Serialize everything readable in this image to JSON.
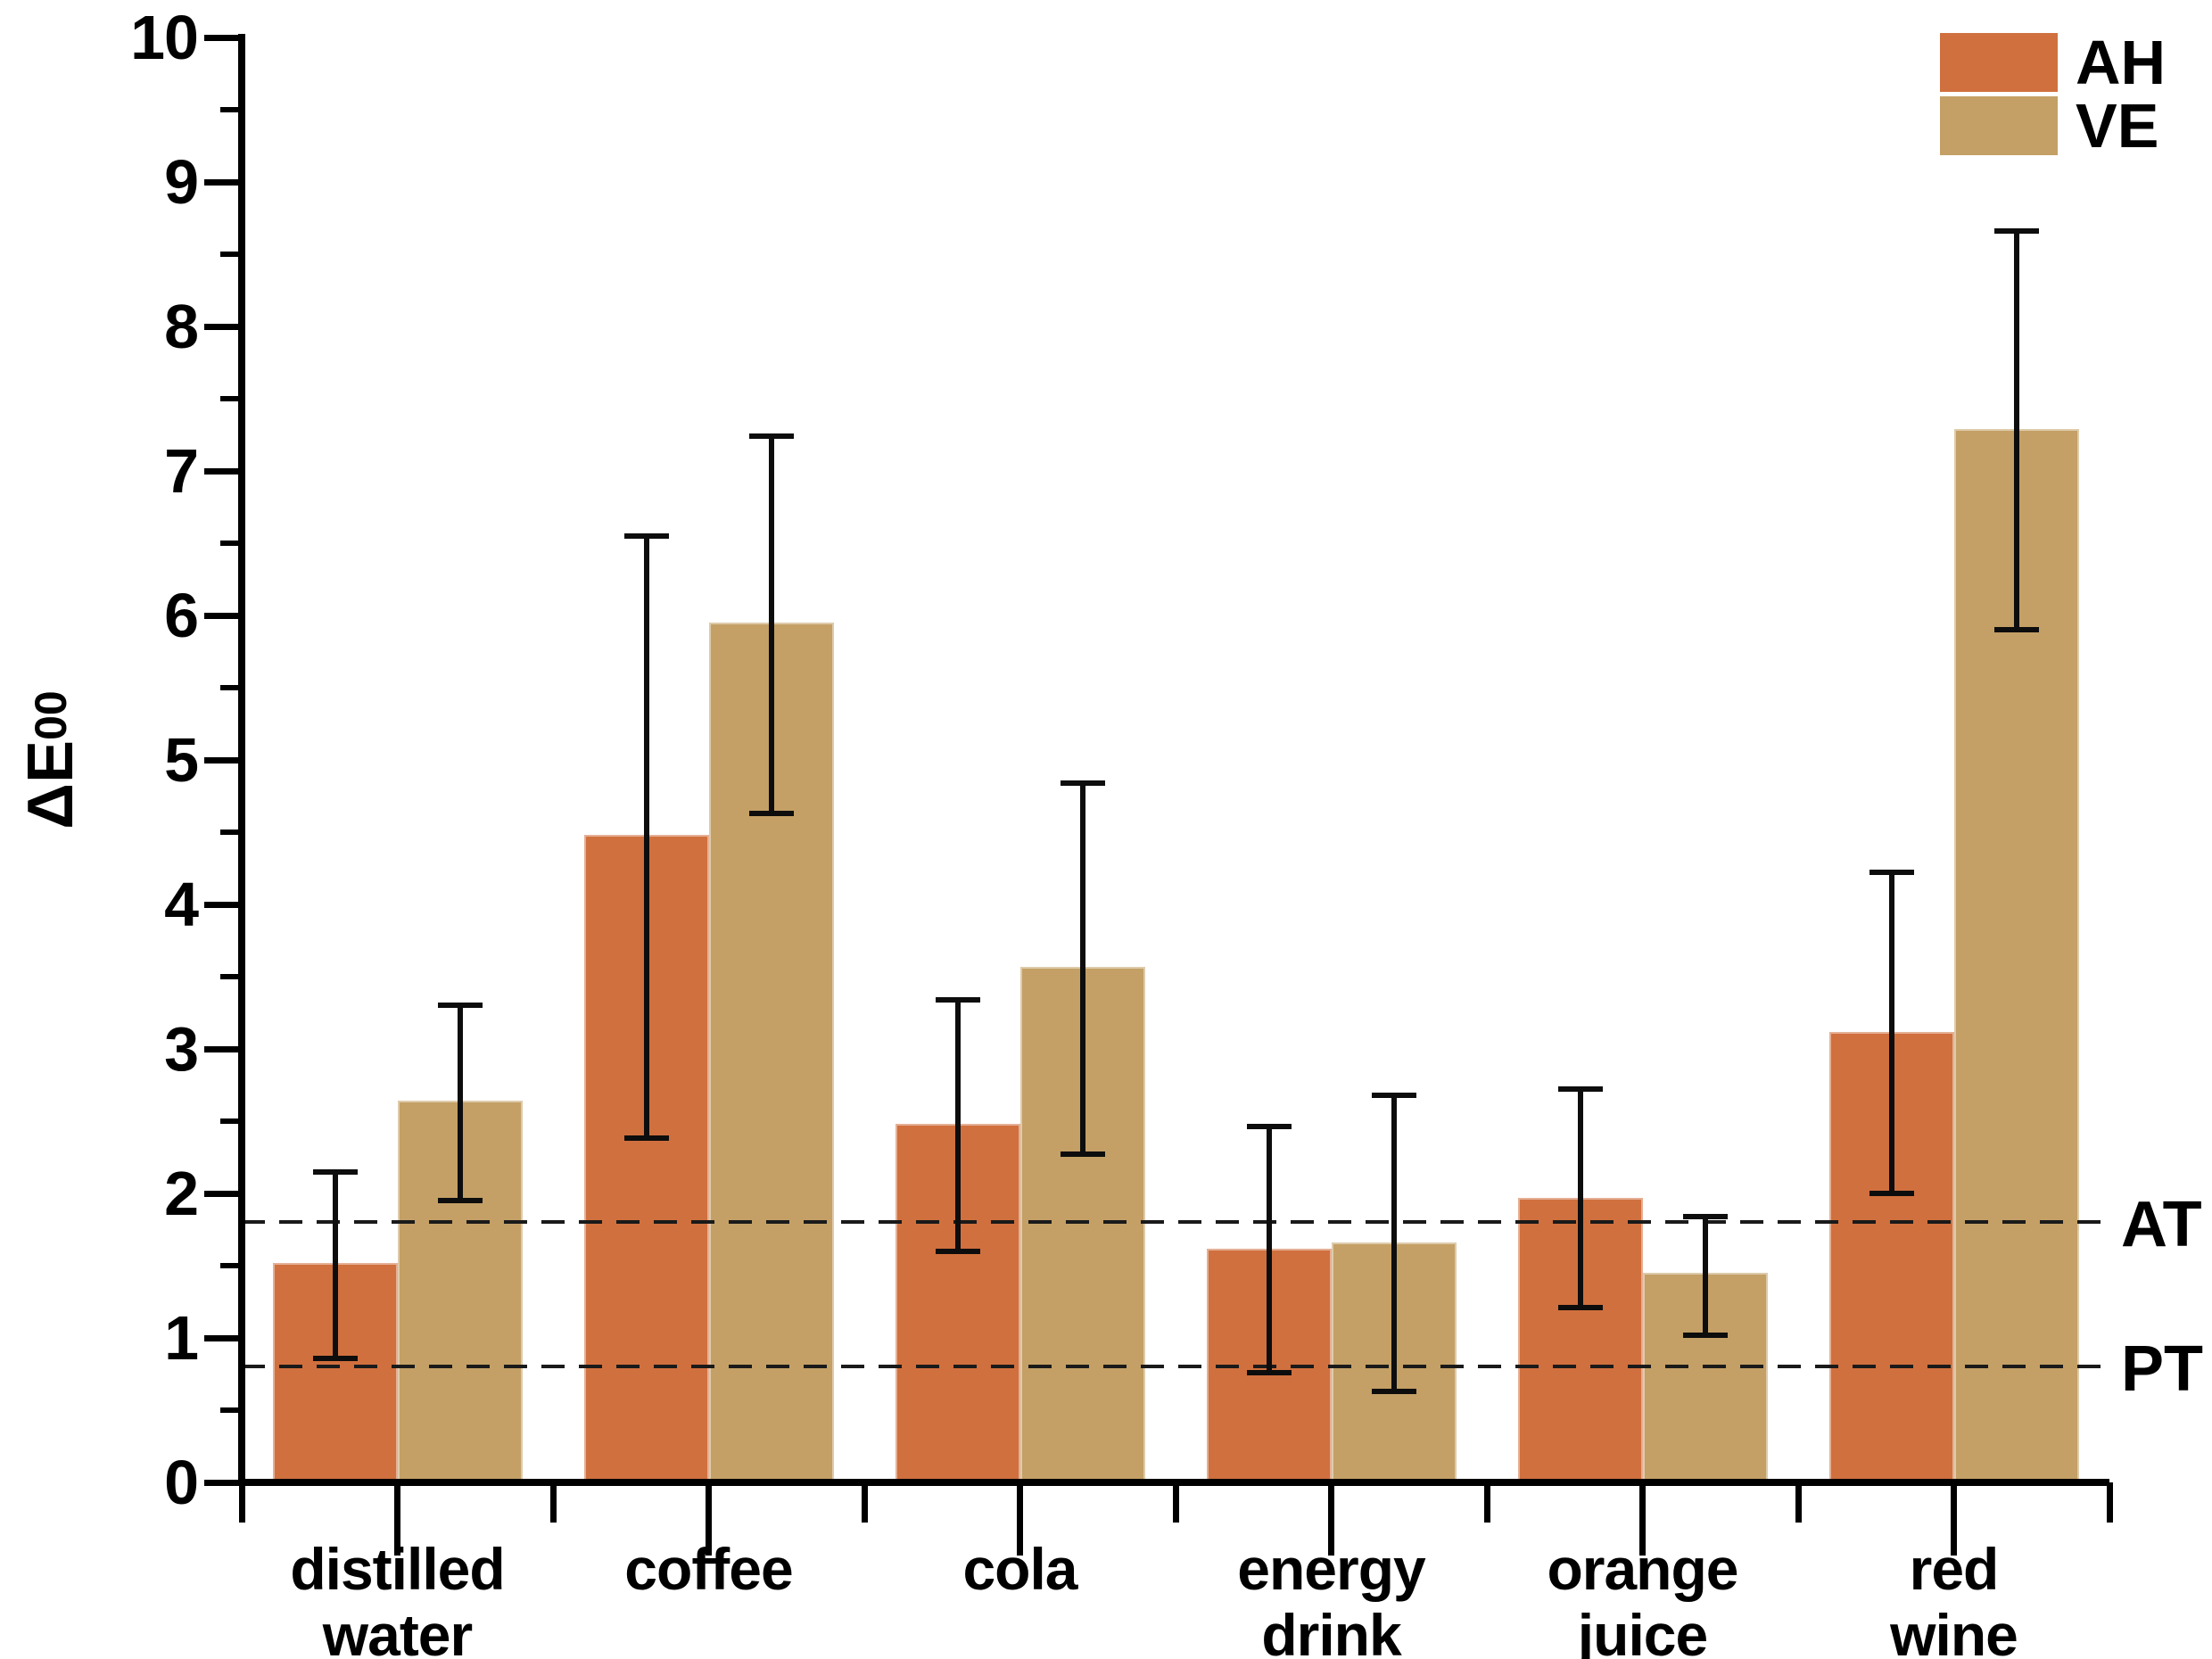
{
  "chart_data": {
    "type": "bar",
    "title": "",
    "ylabel_base": "ΔE",
    "ylabel_sub": "00",
    "xlabel": "",
    "ylim": [
      0,
      10
    ],
    "ytick_step": 1,
    "yminor_step": 0.5,
    "yticks": [
      0,
      1,
      2,
      3,
      4,
      5,
      6,
      7,
      8,
      9,
      10
    ],
    "grid": false,
    "legend_position": "top-right",
    "categories": [
      "distilled water",
      "coffee",
      "cola",
      "energy drink",
      "orange juice",
      "red wine"
    ],
    "category_label_lines": [
      [
        "distilled",
        "water"
      ],
      [
        "coffee"
      ],
      [
        "cola"
      ],
      [
        "energy",
        "drink"
      ],
      [
        "orange",
        "juice"
      ],
      [
        "red",
        "wine"
      ]
    ],
    "series": [
      {
        "name": "AH",
        "color": "#D0703E",
        "values": [
          1.52,
          4.48,
          2.48,
          1.62,
          1.97,
          3.12
        ],
        "err_lo": [
          0.86,
          2.38,
          1.6,
          0.76,
          1.21,
          2.0
        ],
        "err_hi": [
          2.15,
          6.55,
          3.34,
          2.46,
          2.72,
          4.22
        ]
      },
      {
        "name": "VE",
        "color": "#C4A066",
        "values": [
          2.64,
          5.95,
          3.57,
          1.66,
          1.45,
          7.29
        ],
        "err_lo": [
          1.95,
          4.63,
          2.27,
          0.63,
          1.02,
          5.9
        ],
        "err_hi": [
          3.3,
          7.24,
          4.84,
          2.68,
          1.84,
          8.66
        ]
      }
    ],
    "thresholds": [
      {
        "label": "AT",
        "value": 1.8
      },
      {
        "label": "PT",
        "value": 0.8
      }
    ]
  },
  "legend": {
    "items": [
      {
        "label": "AH",
        "color": "#D0703E"
      },
      {
        "label": "VE",
        "color": "#C4A066"
      }
    ]
  },
  "colors": {
    "ah": "#D0703E",
    "ve": "#C4A066",
    "error_bar": "#0d0d0d",
    "threshold_line": "#1a1a1a",
    "axis": "#000000",
    "background": "#ffffff"
  }
}
